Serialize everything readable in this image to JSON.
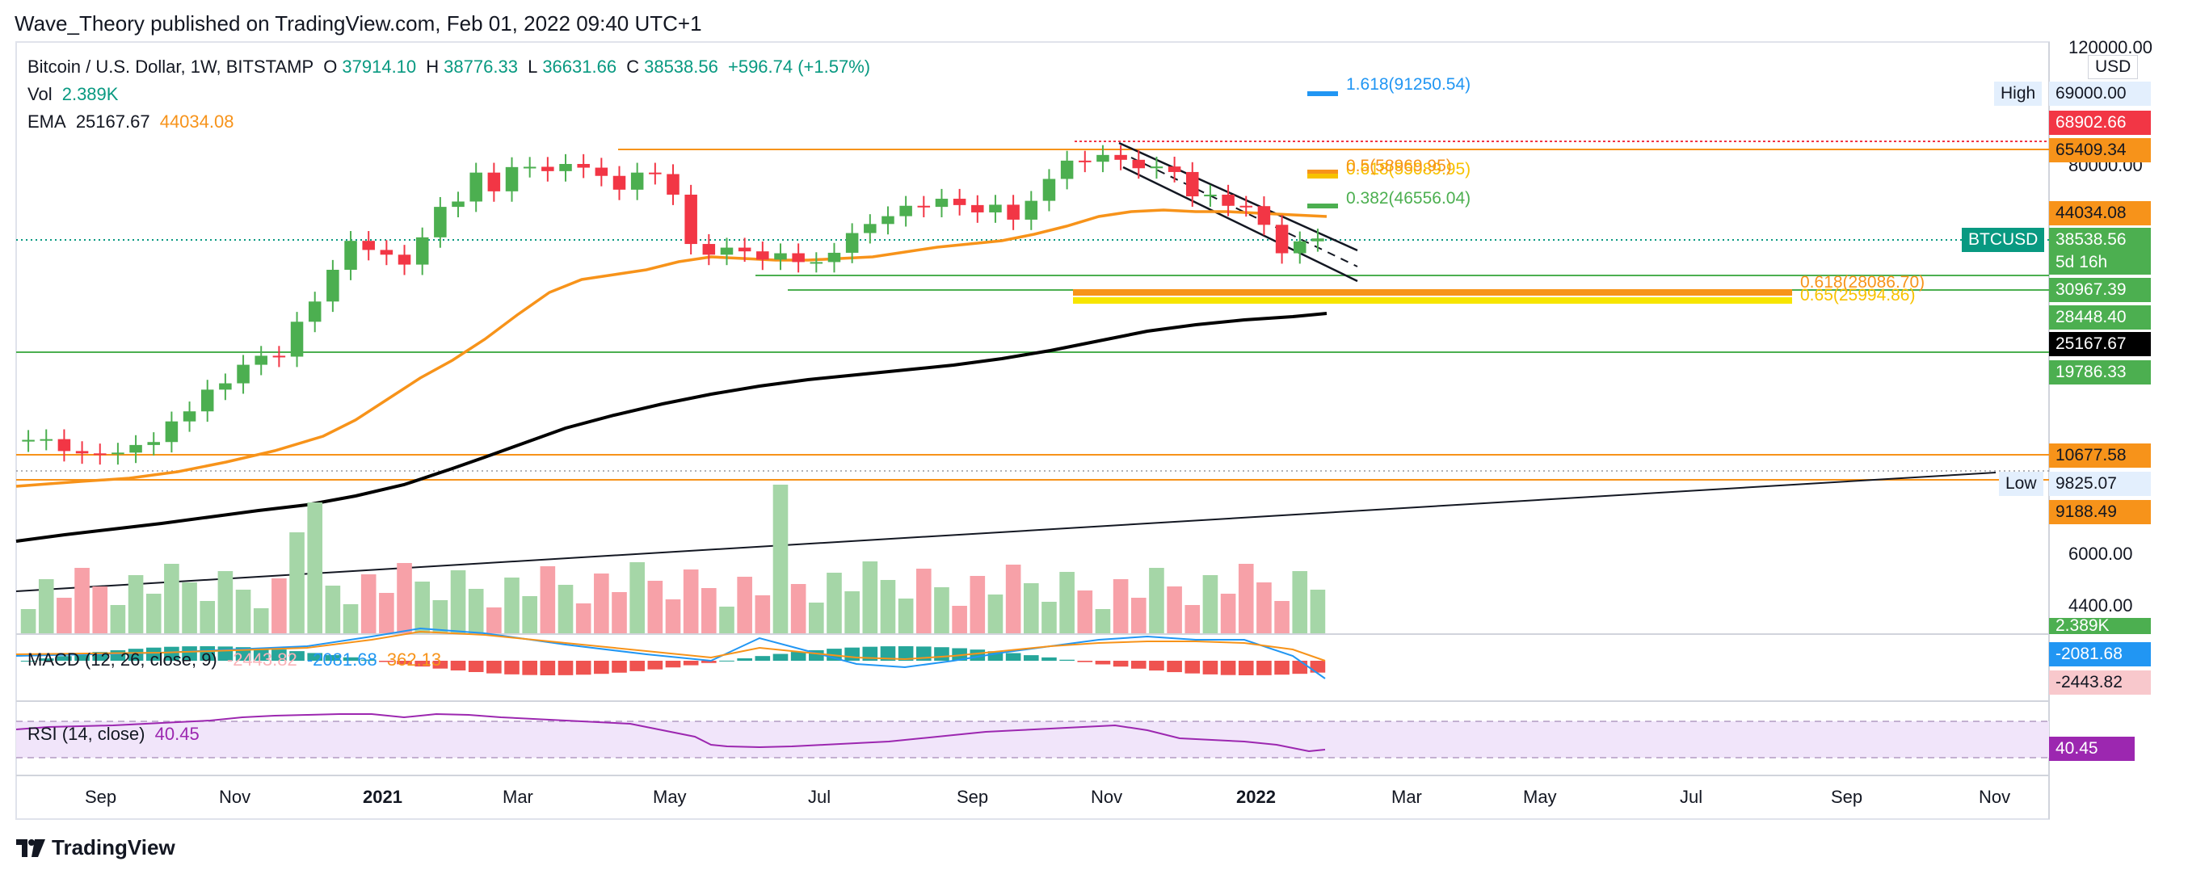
{
  "header": {
    "publisher": "Wave_Theory published on TradingView.com, Feb 01, 2022 09:40 UTC+1"
  },
  "legend": {
    "symbol": "Bitcoin / U.S. Dollar, 1W, BITSTAMP",
    "o_label": "O",
    "o": "37914.10",
    "h_label": "H",
    "h": "38776.33",
    "l_label": "L",
    "l": "36631.66",
    "c_label": "C",
    "c": "38538.56",
    "change": "+596.74 (+1.57%)",
    "vol_label": "Vol",
    "vol": "2.389K",
    "ema_label": "EMA",
    "ema1": "25167.67",
    "ema2": "44034.08",
    "macd_label": "MACD (12, 26, close, 9)",
    "macd_hist": "-2443.82",
    "macd_line": "-2081.68",
    "macd_signal": "362.13",
    "rsi_label": "RSI (14, close)",
    "rsi": "40.45"
  },
  "price_axis": {
    "currency": "USD",
    "ticks": [
      "120000.00",
      "80000.00",
      "6000.00",
      "4400.00"
    ],
    "high_label": "High",
    "high_value": "69000.00",
    "low_label": "Low",
    "low_value": "9825.07",
    "badges": [
      {
        "text": "68902.66",
        "color": "#f23645"
      },
      {
        "text": "65409.34",
        "color": "#f7931a"
      },
      {
        "text": "44034.08",
        "color": "#f7931a"
      },
      {
        "text": "30967.39",
        "color": "#4caf50"
      },
      {
        "text": "28448.40",
        "color": "#4caf50"
      },
      {
        "text": "25167.67",
        "color": "#000000"
      },
      {
        "text": "19786.33",
        "color": "#4caf50"
      },
      {
        "text": "10677.58",
        "color": "#f7931a"
      },
      {
        "text": "9188.49",
        "color": "#f7931a"
      },
      {
        "text": "2.389K",
        "color": "#4caf50"
      },
      {
        "text": "-2081.68",
        "color": "#2196f3"
      },
      {
        "text": "-2443.82",
        "color": "#f8c8cc"
      },
      {
        "text": "40.45",
        "color": "#9c27b0"
      }
    ],
    "current": {
      "symbol": "BTCUSD",
      "price": "38538.56",
      "countdown": "5d 16h"
    }
  },
  "time_axis": [
    "Sep",
    "Nov",
    "2021",
    "Mar",
    "May",
    "Jul",
    "Sep",
    "Nov",
    "2022",
    "Mar",
    "May",
    "Jul",
    "Sep",
    "Nov"
  ],
  "fib_labels": [
    {
      "text": "1.618(91250.54)",
      "color": "#2196f3"
    },
    {
      "text": "0.618(55089.95)",
      "color": "#f7c200"
    },
    {
      "text": "0.5(58969.95)",
      "color": "#f7931a"
    },
    {
      "text": "0.382(46556.04)",
      "color": "#4caf50"
    },
    {
      "text": "0.618(28086.70)",
      "color": "#f7931a"
    },
    {
      "text": "0.65(25994.86)",
      "color": "#f7c200"
    }
  ],
  "colors": {
    "up": "#4caf50",
    "down": "#f23645",
    "ema_fast": "#f7931a",
    "ema_slow": "#000000",
    "rsi": "#9c27b0",
    "macd": "#2196f3",
    "signal": "#f7931a"
  },
  "footer": {
    "brand": "TradingView",
    "logo": "tradingview-logo-icon"
  },
  "chart_data": {
    "type": "candlestick",
    "title": "Bitcoin / U.S. Dollar, 1W, BITSTAMP",
    "xlabel": "",
    "ylabel": "USD",
    "y_scale": "log",
    "ylim": [
      9000,
      120000
    ],
    "x_ticks": [
      "Sep",
      "Nov",
      "2021",
      "Mar",
      "May",
      "Jul",
      "Sep",
      "Nov",
      "2022",
      "Mar",
      "May",
      "Jul",
      "Sep",
      "Nov"
    ],
    "ohlc_weekly_close": [
      11650,
      11700,
      10900,
      10750,
      10700,
      10800,
      11300,
      11500,
      13000,
      13800,
      15700,
      16300,
      18200,
      19200,
      19100,
      23500,
      26500,
      32000,
      38000,
      36000,
      35000,
      33000,
      38800,
      46500,
      48000,
      57000,
      51000,
      58900,
      59000,
      57500,
      60000,
      58700,
      55900,
      51500,
      57000,
      56500,
      50000,
      37300,
      35000,
      36500,
      35700,
      34000,
      35300,
      33500,
      33500,
      35400,
      39800,
      42000,
      44000,
      46800,
      46500,
      48800,
      47000,
      45000,
      47100,
      43100,
      48200,
      54900,
      61200,
      60800,
      63300,
      61500,
      58500,
      59100,
      57200,
      49500,
      50000,
      46800,
      46700,
      41800,
      35300,
      37900,
      38540
    ],
    "ema_50": {
      "name": "EMA",
      "last": 44034.08
    },
    "ema_200": {
      "name": "EMA",
      "last": 25167.67
    },
    "horizontal_levels": [
      68902.66,
      65409.34,
      30967.39,
      28448.4,
      19786.33,
      10677.58,
      9188.49
    ],
    "macd": {
      "name": "MACD (12, 26, close, 9)",
      "histogram": -2443.82,
      "macd": -2081.68,
      "signal": 362.13
    },
    "rsi": {
      "name": "RSI (14, close)",
      "value": 40.45,
      "upper": 70,
      "lower": 30
    },
    "volume_last": "2.389K"
  }
}
